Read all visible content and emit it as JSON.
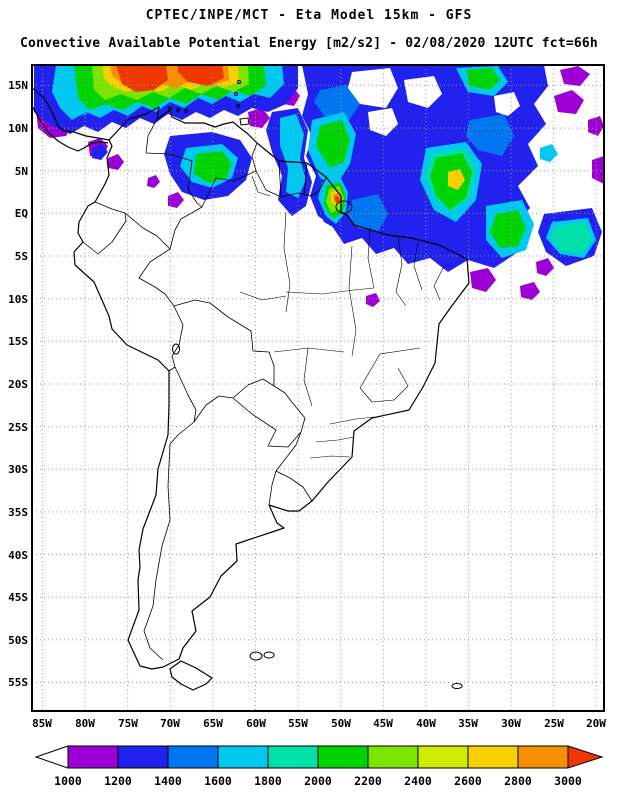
{
  "header": {
    "title": "CPTEC/INPE/MCT -  Eta Model 15km - GFS",
    "subtitle": "Convective Available Potential Energy [m2/s2] - 02/08/2020 12UTC fct=66h"
  },
  "meta": {
    "center": "CPTEC/INPE/MCT",
    "model": "Eta Model 15km",
    "driver": "GFS",
    "field": "Convective Available Potential Energy",
    "units": "m2/s2",
    "date": "02/08/2020",
    "run": "12UTC",
    "forecast": "fct=66h"
  },
  "map": {
    "lat_labels": [
      "15N",
      "10N",
      "5N",
      "EQ",
      "5S",
      "10S",
      "15S",
      "20S",
      "25S",
      "30S",
      "35S",
      "40S",
      "45S",
      "50S",
      "55S"
    ],
    "lon_labels": [
      "85W",
      "80W",
      "75W",
      "70W",
      "65W",
      "60W",
      "55W",
      "50W",
      "45W",
      "40W",
      "35W",
      "30W",
      "25W",
      "20W"
    ]
  },
  "colorbar": {
    "labels": [
      "1000",
      "1200",
      "1400",
      "1600",
      "1800",
      "2000",
      "2200",
      "2400",
      "2600",
      "2800",
      "3000"
    ],
    "segment_colors": [
      "#9c00d4",
      "#2222ee",
      "#0077f0",
      "#00c8f0",
      "#00e0a8",
      "#00d400",
      "#7ce400",
      "#d0ec00",
      "#f6d000",
      "#f69000"
    ],
    "under_range_color": "#ffffff",
    "over_range_color": "#ee3800"
  }
}
